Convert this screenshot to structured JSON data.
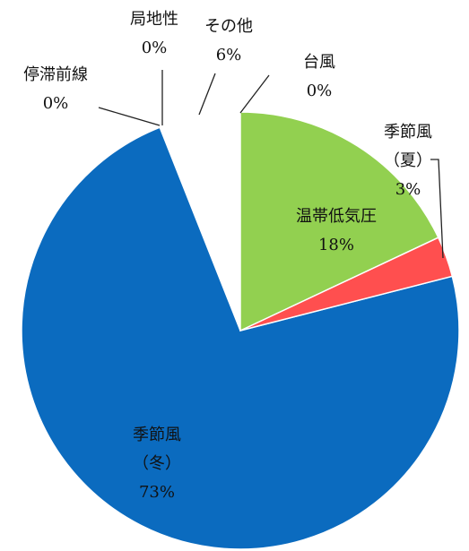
{
  "chart_data": {
    "type": "pie",
    "categories": [
      "台風",
      "温帯低気圧",
      "季節風（夏）",
      "季節風\n（冬）",
      "停滞前線",
      "局地性",
      "その他"
    ],
    "values": [
      0,
      18,
      3,
      73,
      0,
      0,
      6
    ],
    "value_labels": [
      "0%",
      "18%",
      "3%",
      "73%",
      "0%",
      "0%",
      "6%"
    ],
    "colors": [
      "#ffc000",
      "#92d050",
      "#ff4f4f",
      "#0b6bbf",
      "#7f7f7f",
      "#a5a5a5",
      "#ffffff"
    ]
  }
}
